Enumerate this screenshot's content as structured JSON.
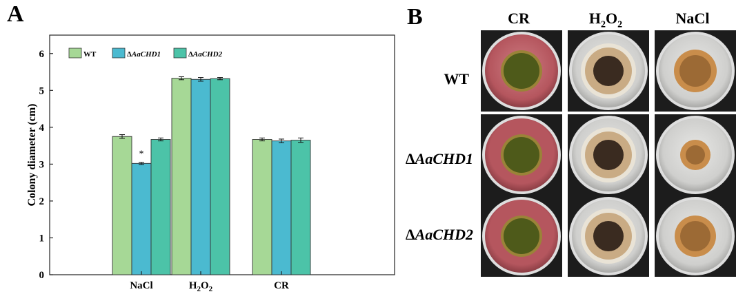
{
  "panels": {
    "a_label": "A",
    "b_label": "B"
  },
  "chart_data": {
    "type": "bar",
    "ylabel": "Colony diameter (cm)",
    "xlabel": "",
    "ylim": [
      0,
      6.5
    ],
    "yticks": [
      0,
      1,
      2,
      3,
      4,
      5,
      6
    ],
    "categories": [
      {
        "label": "NaCl",
        "sub": "",
        "sub2": ""
      },
      {
        "label": "H",
        "sub": "2",
        "mid": "O",
        "sub2": "2"
      },
      {
        "label": "CR",
        "sub": "",
        "sub2": ""
      }
    ],
    "category_text": [
      "NaCl",
      "H2O2",
      "CR"
    ],
    "series": [
      {
        "name": "WT",
        "legend_prefix": "",
        "legend_italic": "WT",
        "italic": false,
        "color": "#a6d896",
        "values": [
          3.75,
          5.33,
          3.67
        ],
        "errors": [
          0.05,
          0.04,
          0.04
        ]
      },
      {
        "name": "ΔAaCHD1",
        "legend_prefix": "Δ",
        "legend_italic": "AaCHD1",
        "italic": true,
        "color": "#4bbad0",
        "values": [
          3.02,
          5.3,
          3.63
        ],
        "errors": [
          0.03,
          0.05,
          0.05
        ]
      },
      {
        "name": "ΔAaCHD2",
        "legend_prefix": "Δ",
        "legend_italic": "AaCHD2",
        "italic": true,
        "color": "#4cc3a8",
        "values": [
          3.67,
          5.32,
          3.65
        ],
        "errors": [
          0.04,
          0.03,
          0.06
        ]
      }
    ],
    "annotations": [
      {
        "series": 1,
        "category": 0,
        "text": "*"
      }
    ],
    "legend_position": "top-left"
  },
  "plates": {
    "columns": [
      {
        "label": "CR",
        "h": "",
        "sub1": "",
        "o": "",
        "sub2": ""
      },
      {
        "label": "",
        "h": "H",
        "sub1": "2",
        "o": "O",
        "sub2": "2"
      },
      {
        "label": "NaCl",
        "h": "",
        "sub1": "",
        "o": "",
        "sub2": ""
      }
    ],
    "rows": [
      {
        "prefix": "",
        "label": "WT"
      },
      {
        "prefix": "Δ",
        "label": "AaCHD1"
      },
      {
        "prefix": "Δ",
        "label": "AaCHD2"
      }
    ],
    "colors": {
      "cr_medium": "#b5565e",
      "cr_medium_light": "#cd7d83",
      "cr_medium_dark": "#8c3e45",
      "grey_medium": "#cfcfcd",
      "grey_medium_dark": "#a9a9a7",
      "rim": "#dedede",
      "colony_green": "#4e5a1a",
      "colony_edge_cr": "#9a8338",
      "colony_dark": "#3a2b20",
      "colony_beige": "#c9ab84",
      "colony_orange": "#c98d4b"
    }
  }
}
